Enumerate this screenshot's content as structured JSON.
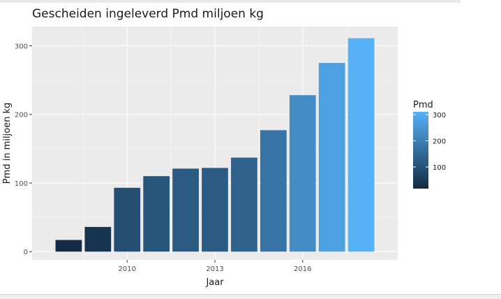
{
  "chart_data": {
    "type": "bar",
    "title": "Gescheiden ingeleverd Pmd miljoen kg",
    "xlabel": "Jaar",
    "ylabel": "Pmd in miljoen kg",
    "x": [
      2008,
      2009,
      2010,
      2011,
      2012,
      2013,
      2014,
      2015,
      2016,
      2017,
      2018
    ],
    "values": [
      17,
      36,
      93,
      110,
      121,
      122,
      137,
      177,
      228,
      275,
      311
    ],
    "xlim": [
      2006.75,
      2019.25
    ],
    "ylim": [
      -12,
      328
    ],
    "x_ticks": [
      2010,
      2013,
      2016
    ],
    "y_ticks": [
      0,
      100,
      200,
      300
    ],
    "grid": true,
    "legend": {
      "title": "Pmd",
      "position": "right",
      "ticks": [
        100,
        200,
        300
      ],
      "range": [
        17,
        311
      ]
    },
    "color_low": "#132B43",
    "color_high": "#56B1F7",
    "panel_bg": "#EBEBEB"
  }
}
